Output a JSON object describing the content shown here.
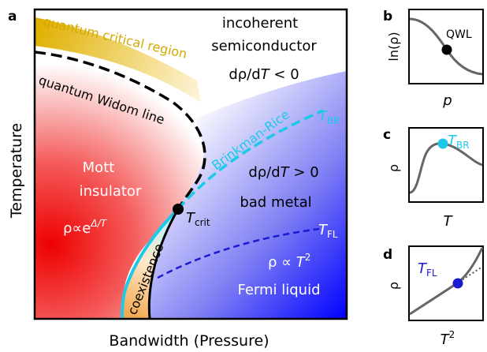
{
  "panel_a": {
    "letter": "a",
    "y_axis_label": "Temperature",
    "x_axis_label": "Bandwidth (Pressure)",
    "incoherent_line1": "incoherent",
    "incoherent_line2": "semiconductor",
    "incoherent_drho": "dρ/d",
    "incoherent_T": "T",
    "incoherent_cmp": " < 0",
    "quantum_critical_region": "quantum critical region",
    "quantum_widom_line": "quantum Widom line",
    "brinkman_rice": "Brinkman-Rice",
    "t_br_T": "T",
    "t_br_sub": "BR",
    "mott_line1": "Mott",
    "mott_line2": "insulator",
    "mott_rho": "ρ∝e",
    "mott_exp": "Δ/T",
    "badmetal_drho": "dρ/d",
    "badmetal_T": "T",
    "badmetal_cmp": " > 0",
    "badmetal_label": "bad metal",
    "t_crit_T": "T",
    "t_crit_sub": "crit",
    "t_fl_T": "T",
    "t_fl_sub": "FL",
    "fl_rho": "ρ ∝ ",
    "fl_T": "T",
    "fl_exp": "2",
    "fermi_liquid": "Fermi liquid",
    "coexistence": "coexistence"
  },
  "panel_b": {
    "letter": "b",
    "ylabel": "ln(ρ)",
    "xlabel": "p",
    "marker_label": "QWL"
  },
  "panel_c": {
    "letter": "c",
    "ylabel": "ρ",
    "xlabel": "T",
    "marker_T": "T",
    "marker_sub": "BR"
  },
  "panel_d": {
    "letter": "d",
    "ylabel": "ρ",
    "xlabel": "T",
    "xlabel_exp": "2",
    "marker_T": "T",
    "marker_sub": "FL"
  },
  "colors": {
    "mott_red": "#f01010",
    "metal_blue": "#1010f0",
    "quantum_critical_gold": "#e0b800",
    "brinkman_cyan": "#1ec8e8",
    "fl_line_blue": "#1a1ad0",
    "qwl_black": "#000000",
    "curve_gray": "#666666"
  }
}
